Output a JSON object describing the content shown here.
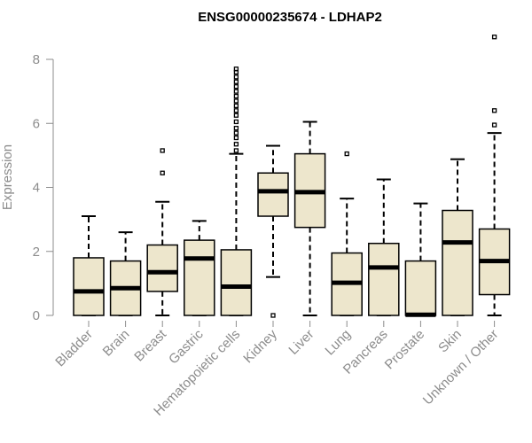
{
  "chart_data": {
    "type": "boxplot",
    "title": "ENSG00000235674 - LDHAP2",
    "xlabel": "",
    "ylabel": "Expression",
    "ylim": [
      0,
      8
    ],
    "yticks": [
      0,
      2,
      4,
      6,
      8
    ],
    "box_color": "#ede6cc",
    "categories": [
      "Bladder",
      "Brain",
      "Breast",
      "Gastric",
      "Hematopoietic cells",
      "Kidney",
      "Liver",
      "Lung",
      "Pancreas",
      "Prostate",
      "Skin",
      "Unknown / Other"
    ],
    "series": [
      {
        "name": "Bladder",
        "min": 0,
        "q1": 0,
        "median": 0.75,
        "q3": 1.8,
        "max": 3.1,
        "outliers": []
      },
      {
        "name": "Brain",
        "min": 0,
        "q1": 0,
        "median": 0.85,
        "q3": 1.7,
        "max": 2.6,
        "outliers": []
      },
      {
        "name": "Breast",
        "min": 0,
        "q1": 0.75,
        "median": 1.35,
        "q3": 2.2,
        "max": 3.55,
        "outliers": [
          4.45,
          5.15
        ]
      },
      {
        "name": "Gastric",
        "min": 0,
        "q1": 0,
        "median": 1.78,
        "q3": 2.35,
        "max": 2.95,
        "outliers": []
      },
      {
        "name": "Hematopoietic cells",
        "min": 0,
        "q1": 0,
        "median": 0.9,
        "q3": 2.05,
        "max": 5.05,
        "outliers": [
          5.15,
          5.35,
          5.55,
          5.7,
          5.85,
          6.05,
          6.25,
          6.4,
          6.55,
          6.7,
          6.85,
          7.0,
          7.15,
          7.3,
          7.45,
          7.6,
          7.7
        ]
      },
      {
        "name": "Kidney",
        "min": 1.2,
        "q1": 3.1,
        "median": 3.88,
        "q3": 4.45,
        "max": 5.3,
        "outliers": [
          0
        ]
      },
      {
        "name": "Liver",
        "min": 0,
        "q1": 2.75,
        "median": 3.85,
        "q3": 5.05,
        "max": 6.05,
        "outliers": []
      },
      {
        "name": "Lung",
        "min": 0,
        "q1": 0,
        "median": 1.02,
        "q3": 1.95,
        "max": 3.65,
        "outliers": [
          5.05
        ]
      },
      {
        "name": "Pancreas",
        "min": 0,
        "q1": 0,
        "median": 1.5,
        "q3": 2.25,
        "max": 4.25,
        "outliers": []
      },
      {
        "name": "Prostate",
        "min": 0,
        "q1": 0,
        "median": 0.02,
        "q3": 1.7,
        "max": 3.5,
        "outliers": []
      },
      {
        "name": "Skin",
        "min": 0,
        "q1": 0,
        "median": 2.28,
        "q3": 3.28,
        "max": 4.88,
        "outliers": []
      },
      {
        "name": "Unknown / Other",
        "min": 0,
        "q1": 0.65,
        "median": 1.7,
        "q3": 2.7,
        "max": 5.7,
        "outliers": [
          5.95,
          6.4,
          8.7
        ]
      }
    ]
  }
}
